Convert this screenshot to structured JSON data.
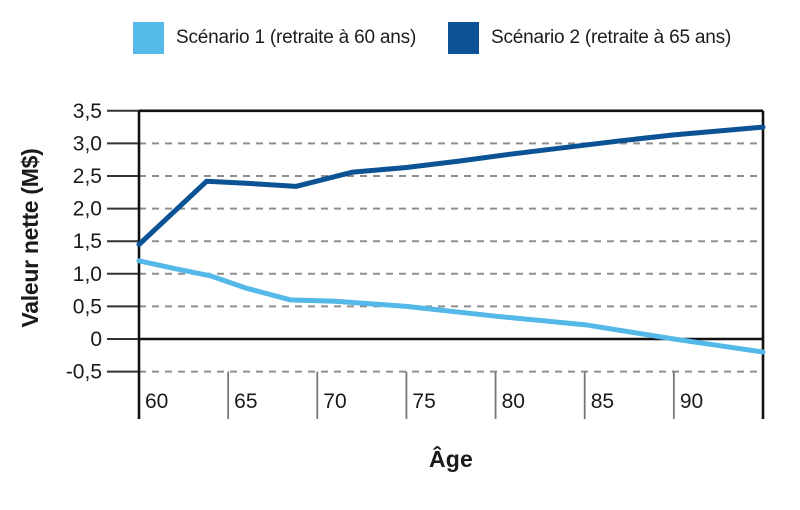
{
  "legend": {
    "items": [
      {
        "id": "scenario-1",
        "label": "Scénario 1 (retraite à 60 ans)",
        "color": "#54B8E8"
      },
      {
        "id": "scenario-2",
        "label": "Scénario 2 (retraite à 65 ans)",
        "color": "#0B5394"
      }
    ]
  },
  "axes": {
    "x_title": "Âge",
    "y_title": "Valeur nette (M$)"
  },
  "chart_data": {
    "type": "line",
    "title": "",
    "xlabel": "Âge",
    "ylabel": "Valeur nette (M$)",
    "xlim": [
      60,
      95
    ],
    "ylim": [
      -1.25,
      3.5
    ],
    "grid": "horizontal dashed gray lines at each 0.5; solid black lines at 3.5 (top border) and 0 (zero line)",
    "legend_position": "top center",
    "yticks": [
      {
        "value": 3.5,
        "label": "3,5",
        "style": "solid"
      },
      {
        "value": 3.0,
        "label": "3,0",
        "style": "dashed"
      },
      {
        "value": 2.5,
        "label": "2,5",
        "style": "dashed"
      },
      {
        "value": 2.0,
        "label": "2,0",
        "style": "dashed"
      },
      {
        "value": 1.5,
        "label": "1,5",
        "style": "dashed"
      },
      {
        "value": 1.0,
        "label": "1,0",
        "style": "dashed"
      },
      {
        "value": 0.5,
        "label": "0,5",
        "style": "dashed"
      },
      {
        "value": 0,
        "label": "0",
        "style": "solid"
      },
      {
        "value": -0.5,
        "label": "-0,5",
        "style": "dashed"
      }
    ],
    "xticks": [
      {
        "value": 60,
        "label": "60"
      },
      {
        "value": 65,
        "label": "65"
      },
      {
        "value": 70,
        "label": "70"
      },
      {
        "value": 75,
        "label": "75"
      },
      {
        "value": 80,
        "label": "80"
      },
      {
        "value": 85,
        "label": "85"
      },
      {
        "value": 90,
        "label": "90"
      }
    ],
    "series": [
      {
        "name": "Scénario 1 (retraite à 60 ans)",
        "color": "#54B8E8",
        "points": [
          [
            60,
            1.2
          ],
          [
            62,
            1.08
          ],
          [
            64,
            0.97
          ],
          [
            66,
            0.78
          ],
          [
            68.5,
            0.6
          ],
          [
            71,
            0.58
          ],
          [
            75,
            0.5
          ],
          [
            80,
            0.35
          ],
          [
            85,
            0.22
          ],
          [
            90,
            0.0
          ],
          [
            92,
            -0.08
          ],
          [
            95,
            -0.2
          ]
        ]
      },
      {
        "name": "Scénario 2 (retraite à 65 ans)",
        "color": "#0B5394",
        "points": [
          [
            60,
            1.45
          ],
          [
            63.8,
            2.42
          ],
          [
            66,
            2.39
          ],
          [
            68.8,
            2.34
          ],
          [
            72,
            2.56
          ],
          [
            75,
            2.63
          ],
          [
            78,
            2.73
          ],
          [
            81,
            2.84
          ],
          [
            84,
            2.94
          ],
          [
            87,
            3.04
          ],
          [
            90,
            3.13
          ],
          [
            95,
            3.25
          ]
        ]
      }
    ]
  },
  "style": {
    "grid_color": "#8f8f8f",
    "axis_color": "#111111",
    "tick_color": "#555555",
    "background": "#ffffff"
  }
}
